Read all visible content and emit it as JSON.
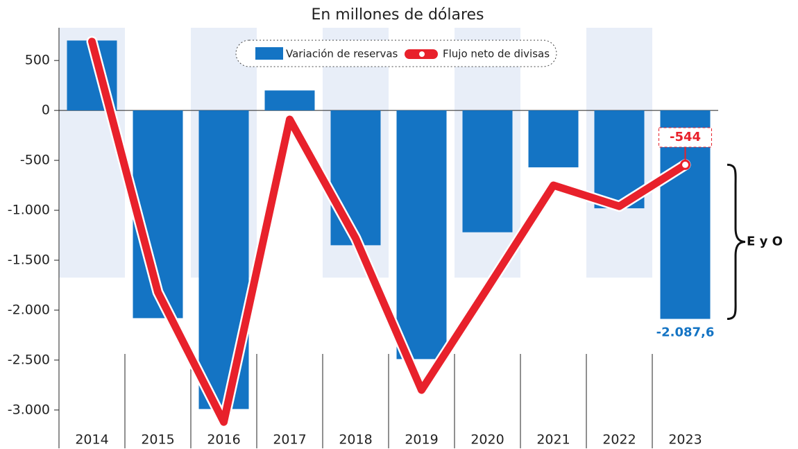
{
  "chart_data": {
    "type": "bar_line",
    "title": "En millones de dólares",
    "categories": [
      "2014",
      "2015",
      "2016",
      "2017",
      "2018",
      "2019",
      "2020",
      "2021",
      "2022",
      "2023"
    ],
    "series": [
      {
        "name": "Variación de reservas",
        "color": "#1474c4",
        "type": "bar",
        "values": [
          700,
          -2080,
          -2990,
          200,
          -1350,
          -2490,
          -1220,
          -570,
          -980,
          -2087.6
        ],
        "value_labels": [
          null,
          null,
          null,
          null,
          null,
          null,
          null,
          null,
          null,
          "-2.087,6"
        ]
      },
      {
        "name": "Flujo neto de divisas",
        "color": "#e8212b",
        "type": "line",
        "values": [
          690,
          -1820,
          -3120,
          -90,
          -1280,
          -2800,
          -1780,
          -750,
          -960,
          -544
        ],
        "value_labels": [
          null,
          null,
          null,
          null,
          null,
          null,
          null,
          null,
          null,
          "-544"
        ]
      }
    ],
    "annotation": "E y O",
    "ylim": [
      -3300,
      800
    ],
    "yticks": [
      500,
      0,
      -500,
      {
        "value": -1000,
        "label": "-1.000"
      },
      {
        "value": -1500,
        "label": "-1.500"
      },
      {
        "value": -2000,
        "label": "-2.000"
      },
      {
        "value": -2500,
        "label": "-2.500"
      },
      {
        "value": -3000,
        "label": "-3.000"
      }
    ],
    "legend": "top"
  }
}
